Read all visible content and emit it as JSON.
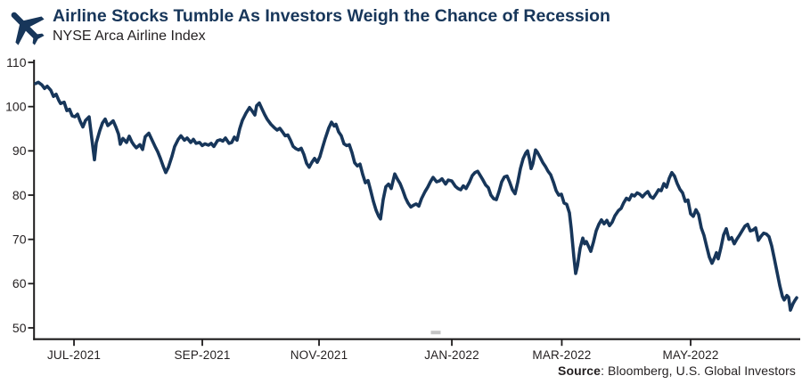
{
  "header": {
    "title": "Airline Stocks Tumble As Investors Weigh the Chance of Recession",
    "subtitle": "NYSE Arca Airline Index"
  },
  "icons": {
    "header_icon": "airplane-icon"
  },
  "footer": {
    "source_label": "Source",
    "source_rest": ": Bloomberg, U.S. Global Investors"
  },
  "colors": {
    "navy": "#17365a",
    "line": "#17365a",
    "ink": "#231f20",
    "axis": "#1d1b1c",
    "artifact_gray": "#b5b5b5"
  },
  "chart_data": {
    "type": "line",
    "title": "Airline Stocks Tumble As Investors Weigh the Chance of Recession",
    "subtitle": "NYSE Arca Airline Index",
    "xlabel": "",
    "ylabel": "",
    "ylim": [
      50,
      110
    ],
    "grid": false,
    "legend": false,
    "y_ticks": [
      110,
      100,
      90,
      80,
      70,
      60,
      50
    ],
    "x_ticks": [
      {
        "label": "JUL-2021",
        "pos": 0.0504
      },
      {
        "label": "SEP-2021",
        "pos": 0.219
      },
      {
        "label": "NOV-2021",
        "pos": 0.3724
      },
      {
        "label": "JAN-2022",
        "pos": 0.5469
      },
      {
        "label": "MAR-2022",
        "pos": 0.6914
      },
      {
        "label": "MAY-2022",
        "pos": 0.8607
      }
    ],
    "series": [
      {
        "name": "NYSE Arca Airline Index",
        "points": [
          [
            0.0,
            105.2
          ],
          [
            0.0035,
            105.5
          ],
          [
            0.0082,
            104.9
          ],
          [
            0.0117,
            104.1
          ],
          [
            0.0152,
            104.6
          ],
          [
            0.0199,
            103.7
          ],
          [
            0.0234,
            102.3
          ],
          [
            0.0269,
            102.8
          ],
          [
            0.0304,
            101.4
          ],
          [
            0.0328,
            100.7
          ],
          [
            0.0375,
            101.0
          ],
          [
            0.041,
            99.1
          ],
          [
            0.0445,
            99.4
          ],
          [
            0.048,
            97.9
          ],
          [
            0.0515,
            97.7
          ],
          [
            0.055,
            98.3
          ],
          [
            0.0585,
            96.7
          ],
          [
            0.0621,
            95.4
          ],
          [
            0.0656,
            96.9
          ],
          [
            0.0703,
            97.7
          ],
          [
            0.0738,
            92.8
          ],
          [
            0.0773,
            88.0
          ],
          [
            0.0796,
            91.8
          ],
          [
            0.0843,
            94.6
          ],
          [
            0.0878,
            96.3
          ],
          [
            0.0913,
            97.2
          ],
          [
            0.0948,
            95.7
          ],
          [
            0.0983,
            96.2
          ],
          [
            0.1019,
            96.8
          ],
          [
            0.1054,
            95.4
          ],
          [
            0.1089,
            93.8
          ],
          [
            0.1112,
            91.5
          ],
          [
            0.1148,
            92.8
          ],
          [
            0.1194,
            91.9
          ],
          [
            0.123,
            93.3
          ],
          [
            0.1265,
            92.0
          ],
          [
            0.1288,
            91.4
          ],
          [
            0.1323,
            90.7
          ],
          [
            0.137,
            91.4
          ],
          [
            0.1405,
            90.3
          ],
          [
            0.144,
            93.2
          ],
          [
            0.1487,
            94.0
          ],
          [
            0.1522,
            92.7
          ],
          [
            0.1569,
            91.0
          ],
          [
            0.1604,
            89.8
          ],
          [
            0.1639,
            88.3
          ],
          [
            0.1674,
            86.6
          ],
          [
            0.171,
            85.1
          ],
          [
            0.1745,
            86.3
          ],
          [
            0.1792,
            88.8
          ],
          [
            0.1827,
            91.0
          ],
          [
            0.1873,
            92.6
          ],
          [
            0.1909,
            93.4
          ],
          [
            0.1956,
            92.4
          ],
          [
            0.1991,
            92.9
          ],
          [
            0.2037,
            91.9
          ],
          [
            0.2073,
            92.6
          ],
          [
            0.2108,
            91.7
          ],
          [
            0.2155,
            91.9
          ],
          [
            0.219,
            91.2
          ],
          [
            0.2225,
            91.6
          ],
          [
            0.2272,
            91.3
          ],
          [
            0.2307,
            91.7
          ],
          [
            0.2342,
            91.0
          ],
          [
            0.2389,
            92.3
          ],
          [
            0.2424,
            92.5
          ],
          [
            0.2459,
            92.2
          ],
          [
            0.2494,
            92.9
          ],
          [
            0.2541,
            91.7
          ],
          [
            0.2576,
            91.9
          ],
          [
            0.2611,
            93.1
          ],
          [
            0.2646,
            92.4
          ],
          [
            0.2682,
            95.0
          ],
          [
            0.2717,
            96.9
          ],
          [
            0.2763,
            98.5
          ],
          [
            0.281,
            99.8
          ],
          [
            0.2845,
            99.0
          ],
          [
            0.2881,
            98.1
          ],
          [
            0.2904,
            100.2
          ],
          [
            0.2939,
            100.8
          ],
          [
            0.2974,
            99.5
          ],
          [
            0.3009,
            98.2
          ],
          [
            0.3045,
            97.1
          ],
          [
            0.3091,
            96.0
          ],
          [
            0.3138,
            95.2
          ],
          [
            0.3173,
            94.7
          ],
          [
            0.3208,
            95.1
          ],
          [
            0.3244,
            94.3
          ],
          [
            0.3279,
            93.4
          ],
          [
            0.3314,
            93.6
          ],
          [
            0.3349,
            92.4
          ],
          [
            0.3384,
            91.0
          ],
          [
            0.3419,
            90.5
          ],
          [
            0.3454,
            90.2
          ],
          [
            0.3489,
            90.6
          ],
          [
            0.3525,
            89.2
          ],
          [
            0.356,
            87.2
          ],
          [
            0.3595,
            86.3
          ],
          [
            0.363,
            87.4
          ],
          [
            0.3665,
            88.3
          ],
          [
            0.37,
            87.4
          ],
          [
            0.3735,
            88.7
          ],
          [
            0.377,
            90.8
          ],
          [
            0.3806,
            92.8
          ],
          [
            0.3852,
            95.2
          ],
          [
            0.3888,
            96.5
          ],
          [
            0.3923,
            95.6
          ],
          [
            0.3946,
            96.0
          ],
          [
            0.3981,
            94.3
          ],
          [
            0.4016,
            93.4
          ],
          [
            0.4051,
            91.6
          ],
          [
            0.4087,
            91.2
          ],
          [
            0.4122,
            91.4
          ],
          [
            0.4157,
            89.6
          ],
          [
            0.4192,
            87.3
          ],
          [
            0.4227,
            86.6
          ],
          [
            0.4262,
            87.0
          ],
          [
            0.4298,
            84.7
          ],
          [
            0.4333,
            82.8
          ],
          [
            0.4368,
            83.3
          ],
          [
            0.4403,
            81.0
          ],
          [
            0.4438,
            78.6
          ],
          [
            0.4473,
            76.6
          ],
          [
            0.4508,
            75.2
          ],
          [
            0.4532,
            74.6
          ],
          [
            0.4567,
            79.0
          ],
          [
            0.4602,
            81.9
          ],
          [
            0.4637,
            82.5
          ],
          [
            0.4672,
            81.5
          ],
          [
            0.4719,
            84.8
          ],
          [
            0.4754,
            83.6
          ],
          [
            0.4789,
            82.6
          ],
          [
            0.4824,
            81.1
          ],
          [
            0.4859,
            79.4
          ],
          [
            0.4894,
            78.2
          ],
          [
            0.493,
            77.3
          ],
          [
            0.4965,
            77.7
          ],
          [
            0.5,
            78.0
          ],
          [
            0.5035,
            77.5
          ],
          [
            0.507,
            79.2
          ],
          [
            0.5117,
            80.8
          ],
          [
            0.5152,
            81.8
          ],
          [
            0.5187,
            83.0
          ],
          [
            0.5222,
            84.0
          ],
          [
            0.5269,
            83.0
          ],
          [
            0.5304,
            83.2
          ],
          [
            0.5339,
            83.7
          ],
          [
            0.5386,
            82.5
          ],
          [
            0.5421,
            83.4
          ],
          [
            0.5468,
            83.2
          ],
          [
            0.5515,
            82.0
          ],
          [
            0.555,
            81.5
          ],
          [
            0.5585,
            81.2
          ],
          [
            0.562,
            82.1
          ],
          [
            0.5656,
            81.5
          ],
          [
            0.5702,
            83.0
          ],
          [
            0.5738,
            84.4
          ],
          [
            0.5773,
            85.1
          ],
          [
            0.5808,
            85.4
          ],
          [
            0.5843,
            84.4
          ],
          [
            0.5878,
            83.4
          ],
          [
            0.5913,
            82.3
          ],
          [
            0.5948,
            81.7
          ],
          [
            0.5983,
            80.0
          ],
          [
            0.6019,
            79.2
          ],
          [
            0.6054,
            79.0
          ],
          [
            0.6089,
            80.8
          ],
          [
            0.6124,
            83.0
          ],
          [
            0.6159,
            84.1
          ],
          [
            0.6194,
            84.3
          ],
          [
            0.623,
            82.9
          ],
          [
            0.6265,
            81.2
          ],
          [
            0.63,
            80.3
          ],
          [
            0.6335,
            82.9
          ],
          [
            0.637,
            86.0
          ],
          [
            0.6405,
            88.2
          ],
          [
            0.644,
            89.5
          ],
          [
            0.6464,
            90.0
          ],
          [
            0.6487,
            88.3
          ],
          [
            0.6511,
            86.0
          ],
          [
            0.6534,
            87.1
          ],
          [
            0.6569,
            90.2
          ],
          [
            0.6593,
            89.7
          ],
          [
            0.6628,
            88.6
          ],
          [
            0.6663,
            87.4
          ],
          [
            0.6698,
            86.5
          ],
          [
            0.6733,
            85.4
          ],
          [
            0.6768,
            84.6
          ],
          [
            0.6804,
            82.9
          ],
          [
            0.6839,
            81.0
          ],
          [
            0.6874,
            80.0
          ],
          [
            0.6909,
            80.2
          ],
          [
            0.6944,
            78.2
          ],
          [
            0.6979,
            77.9
          ],
          [
            0.7014,
            76.0
          ],
          [
            0.7037,
            72.5
          ],
          [
            0.7073,
            66.0
          ],
          [
            0.7096,
            62.3
          ],
          [
            0.7119,
            64.0
          ],
          [
            0.7155,
            68.0
          ],
          [
            0.719,
            70.3
          ],
          [
            0.7213,
            69.0
          ],
          [
            0.7237,
            69.5
          ],
          [
            0.7272,
            68.2
          ],
          [
            0.7295,
            67.3
          ],
          [
            0.733,
            69.4
          ],
          [
            0.7365,
            71.9
          ],
          [
            0.74,
            73.4
          ],
          [
            0.7435,
            74.4
          ],
          [
            0.747,
            73.5
          ],
          [
            0.7506,
            74.3
          ],
          [
            0.7541,
            73.1
          ],
          [
            0.7576,
            73.9
          ],
          [
            0.7611,
            75.3
          ],
          [
            0.7658,
            76.5
          ],
          [
            0.7693,
            77.0
          ],
          [
            0.7728,
            78.3
          ],
          [
            0.7763,
            79.3
          ],
          [
            0.7799,
            78.9
          ],
          [
            0.7834,
            80.1
          ],
          [
            0.7869,
            79.8
          ],
          [
            0.7904,
            80.5
          ],
          [
            0.7939,
            80.2
          ],
          [
            0.7974,
            79.6
          ],
          [
            0.8009,
            80.3
          ],
          [
            0.8044,
            80.8
          ],
          [
            0.8079,
            79.7
          ],
          [
            0.8114,
            79.3
          ],
          [
            0.815,
            80.2
          ],
          [
            0.8185,
            81.2
          ],
          [
            0.822,
            81.0
          ],
          [
            0.8255,
            82.6
          ],
          [
            0.829,
            81.8
          ],
          [
            0.8325,
            83.8
          ],
          [
            0.836,
            85.1
          ],
          [
            0.8395,
            84.3
          ],
          [
            0.8431,
            82.6
          ],
          [
            0.8466,
            81.3
          ],
          [
            0.8501,
            80.5
          ],
          [
            0.8536,
            78.6
          ],
          [
            0.8571,
            78.9
          ],
          [
            0.8607,
            75.8
          ],
          [
            0.8642,
            75.2
          ],
          [
            0.8677,
            76.7
          ],
          [
            0.8712,
            75.6
          ],
          [
            0.8747,
            72.6
          ],
          [
            0.8782,
            70.9
          ],
          [
            0.8817,
            68.4
          ],
          [
            0.8852,
            66.0
          ],
          [
            0.8888,
            64.6
          ],
          [
            0.8923,
            65.9
          ],
          [
            0.8946,
            67.0
          ],
          [
            0.897,
            65.6
          ],
          [
            0.9005,
            68.1
          ],
          [
            0.904,
            71.0
          ],
          [
            0.9075,
            72.4
          ],
          [
            0.911,
            70.0
          ],
          [
            0.9145,
            70.4
          ],
          [
            0.918,
            69.0
          ],
          [
            0.9215,
            70.1
          ],
          [
            0.9251,
            71.0
          ],
          [
            0.9286,
            72.0
          ],
          [
            0.9321,
            73.0
          ],
          [
            0.9356,
            73.4
          ],
          [
            0.9391,
            71.9
          ],
          [
            0.9426,
            72.1
          ],
          [
            0.9461,
            72.6
          ],
          [
            0.9496,
            69.8
          ],
          [
            0.9532,
            70.7
          ],
          [
            0.9567,
            71.4
          ],
          [
            0.9602,
            71.2
          ],
          [
            0.9637,
            70.6
          ],
          [
            0.9672,
            68.5
          ],
          [
            0.9707,
            65.6
          ],
          [
            0.9742,
            62.6
          ],
          [
            0.9777,
            59.6
          ],
          [
            0.9813,
            57.1
          ],
          [
            0.9836,
            56.3
          ],
          [
            0.9871,
            57.3
          ],
          [
            0.9895,
            56.9
          ],
          [
            0.9918,
            54.0
          ],
          [
            0.9953,
            55.5
          ],
          [
            0.9977,
            56.2
          ],
          [
            1.0,
            56.8
          ]
        ]
      }
    ]
  }
}
